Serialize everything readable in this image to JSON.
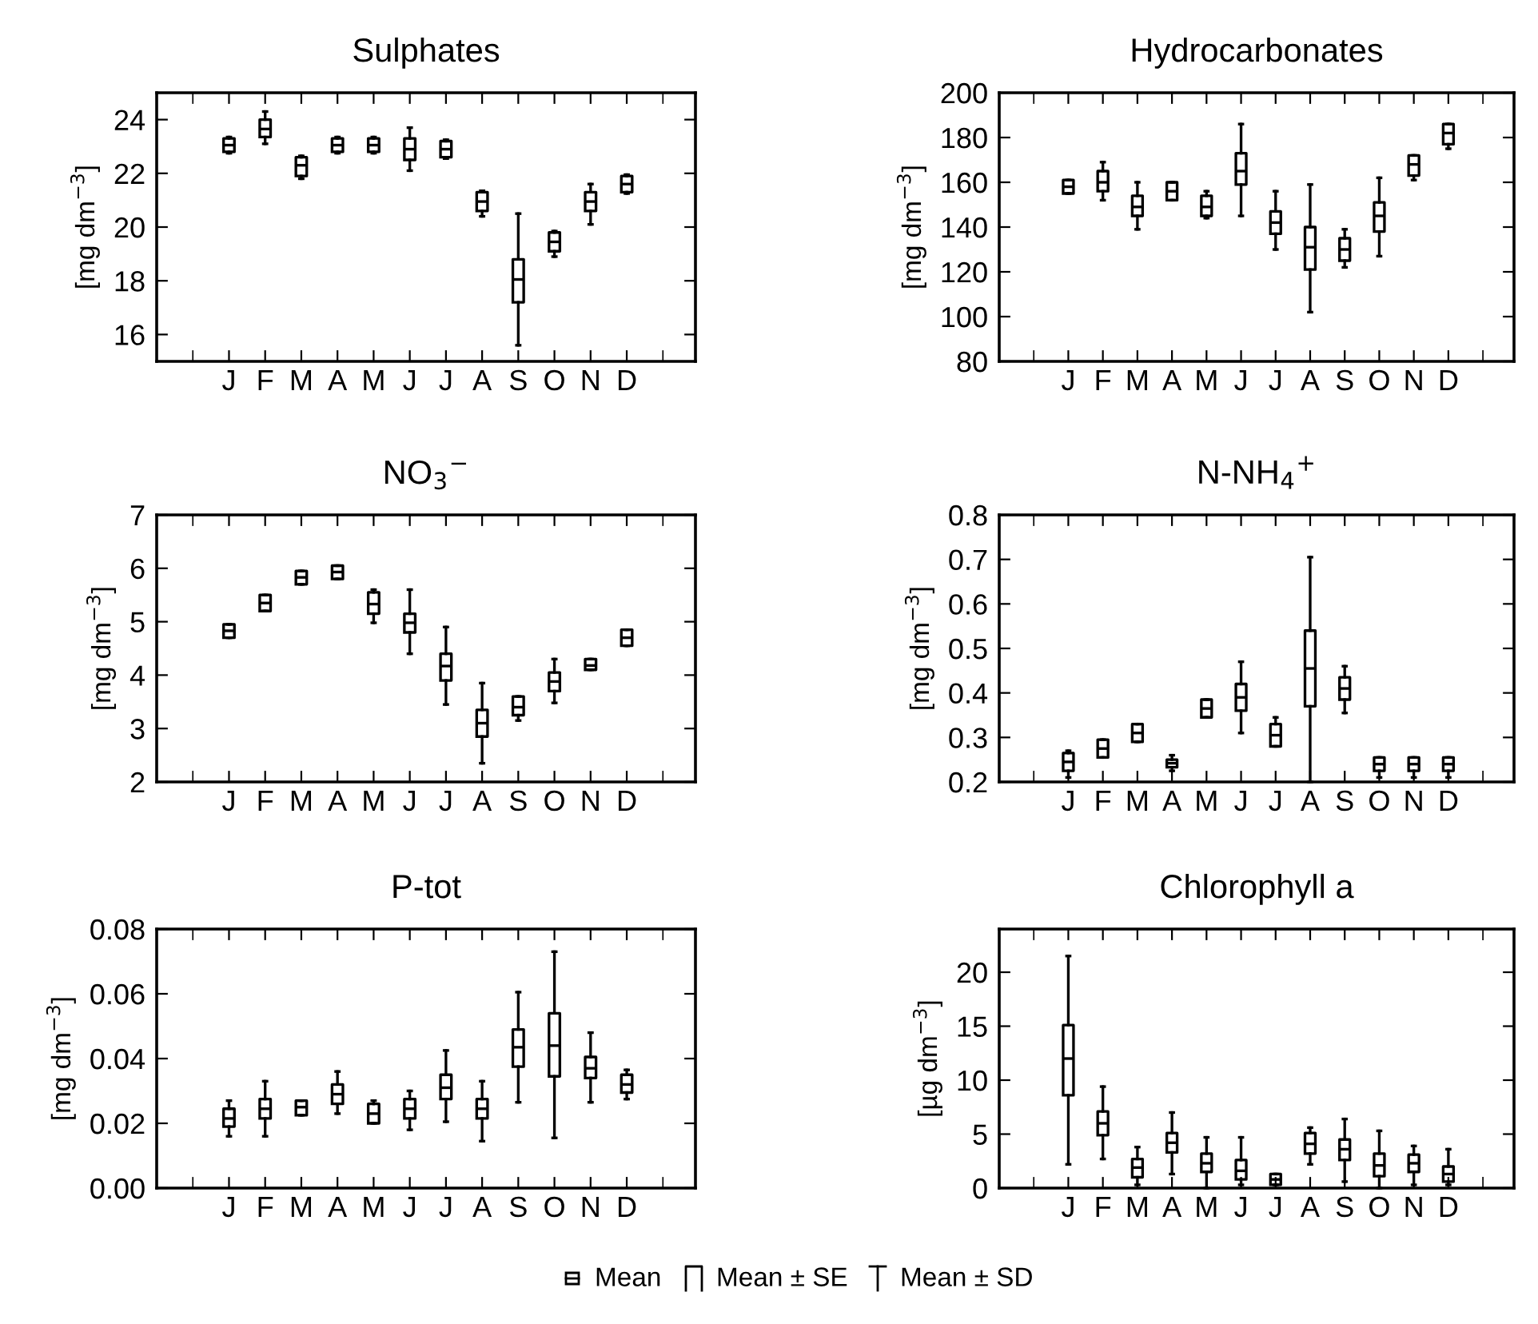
{
  "chart_data": [
    {
      "type": "box",
      "title": "Sulphates",
      "ylabel": "[mg dm$^{−3}$]",
      "categories": [
        "J",
        "F",
        "M",
        "A",
        "M",
        "J",
        "J",
        "A",
        "S",
        "O",
        "N",
        "D"
      ],
      "ylim": [
        15,
        25
      ],
      "yticks": [
        16,
        18,
        20,
        22,
        24
      ],
      "boxes": [
        {
          "low": 22.75,
          "q1": 22.8,
          "median": 23.05,
          "q3": 23.3,
          "high": 23.35
        },
        {
          "low": 23.1,
          "q1": 23.35,
          "median": 23.65,
          "q3": 24.0,
          "high": 24.3
        },
        {
          "low": 21.8,
          "q1": 21.9,
          "median": 22.3,
          "q3": 22.6,
          "high": 22.65
        },
        {
          "low": 22.75,
          "q1": 22.8,
          "median": 23.05,
          "q3": 23.3,
          "high": 23.35
        },
        {
          "low": 22.75,
          "q1": 22.8,
          "median": 23.05,
          "q3": 23.3,
          "high": 23.35
        },
        {
          "low": 22.1,
          "q1": 22.5,
          "median": 22.9,
          "q3": 23.3,
          "high": 23.7
        },
        {
          "low": 22.55,
          "q1": 22.6,
          "median": 22.9,
          "q3": 23.2,
          "high": 23.25
        },
        {
          "low": 20.4,
          "q1": 20.6,
          "median": 20.95,
          "q3": 21.3,
          "high": 21.35
        },
        {
          "low": 15.6,
          "q1": 17.2,
          "median": 18.05,
          "q3": 18.8,
          "high": 20.5
        },
        {
          "low": 18.9,
          "q1": 19.1,
          "median": 19.45,
          "q3": 19.8,
          "high": 19.85
        },
        {
          "low": 20.1,
          "q1": 20.6,
          "median": 20.95,
          "q3": 21.3,
          "high": 21.6
        },
        {
          "low": 21.25,
          "q1": 21.3,
          "median": 21.6,
          "q3": 21.9,
          "high": 21.95
        }
      ]
    },
    {
      "type": "box",
      "title": "Hydrocarbonates",
      "ylabel": "[mg dm$^{−3}$]",
      "categories": [
        "J",
        "F",
        "M",
        "A",
        "M",
        "J",
        "J",
        "A",
        "S",
        "O",
        "N",
        "D"
      ],
      "ylim": [
        80,
        200
      ],
      "yticks": [
        80,
        100,
        120,
        140,
        160,
        180,
        200
      ],
      "boxes": [
        {
          "low": 155,
          "q1": 155,
          "median": 158,
          "q3": 161,
          "high": 161
        },
        {
          "low": 152,
          "q1": 156,
          "median": 160,
          "q3": 165,
          "high": 169
        },
        {
          "low": 139,
          "q1": 145,
          "median": 149,
          "q3": 154,
          "high": 160
        },
        {
          "low": 152,
          "q1": 152,
          "median": 156,
          "q3": 160,
          "high": 160
        },
        {
          "low": 144,
          "q1": 145,
          "median": 149,
          "q3": 154,
          "high": 156
        },
        {
          "low": 145,
          "q1": 159,
          "median": 165,
          "q3": 173,
          "high": 186
        },
        {
          "low": 130,
          "q1": 137,
          "median": 142,
          "q3": 147,
          "high": 156
        },
        {
          "low": 102,
          "q1": 121,
          "median": 131,
          "q3": 140,
          "high": 159
        },
        {
          "low": 122,
          "q1": 125,
          "median": 130,
          "q3": 135,
          "high": 139
        },
        {
          "low": 127,
          "q1": 138,
          "median": 145,
          "q3": 151,
          "high": 162
        },
        {
          "low": 161,
          "q1": 163,
          "median": 168,
          "q3": 172,
          "high": 172
        },
        {
          "low": 175,
          "q1": 177,
          "median": 182,
          "q3": 186,
          "high": 186
        }
      ]
    },
    {
      "type": "box",
      "title": "NO$_{3}$$^{−}$",
      "ylabel": "[mg dm$^{−3}$]",
      "categories": [
        "J",
        "F",
        "M",
        "A",
        "M",
        "J",
        "J",
        "A",
        "S",
        "O",
        "N",
        "D"
      ],
      "ylim": [
        2,
        7
      ],
      "yticks": [
        2,
        3,
        4,
        5,
        6,
        7
      ],
      "boxes": [
        {
          "low": 4.7,
          "q1": 4.7,
          "median": 4.83,
          "q3": 4.95,
          "high": 4.95
        },
        {
          "low": 5.2,
          "q1": 5.2,
          "median": 5.35,
          "q3": 5.5,
          "high": 5.5
        },
        {
          "low": 5.7,
          "q1": 5.7,
          "median": 5.83,
          "q3": 5.95,
          "high": 5.95
        },
        {
          "low": 5.8,
          "q1": 5.8,
          "median": 5.93,
          "q3": 6.05,
          "high": 6.05
        },
        {
          "low": 4.98,
          "q1": 5.15,
          "median": 5.33,
          "q3": 5.55,
          "high": 5.6
        },
        {
          "low": 4.4,
          "q1": 4.8,
          "median": 4.98,
          "q3": 5.15,
          "high": 5.6
        },
        {
          "low": 3.45,
          "q1": 3.9,
          "median": 4.17,
          "q3": 4.4,
          "high": 4.9
        },
        {
          "low": 2.35,
          "q1": 2.85,
          "median": 3.1,
          "q3": 3.35,
          "high": 3.85
        },
        {
          "low": 3.15,
          "q1": 3.25,
          "median": 3.4,
          "q3": 3.6,
          "high": 3.6
        },
        {
          "low": 3.48,
          "q1": 3.7,
          "median": 3.88,
          "q3": 4.05,
          "high": 4.3
        },
        {
          "low": 4.1,
          "q1": 4.1,
          "median": 4.18,
          "q3": 4.3,
          "high": 4.3
        },
        {
          "low": 4.55,
          "q1": 4.55,
          "median": 4.7,
          "q3": 4.85,
          "high": 4.85
        }
      ]
    },
    {
      "type": "box",
      "title": "N-NH$_{4}$$^{+}$",
      "ylabel": "[mg dm$^{−3}$]",
      "categories": [
        "J",
        "F",
        "M",
        "A",
        "M",
        "J",
        "J",
        "A",
        "S",
        "O",
        "N",
        "D"
      ],
      "ylim": [
        0.2,
        0.8
      ],
      "yticks": [
        0.2,
        0.3,
        0.4,
        0.5,
        0.6,
        0.7,
        0.8
      ],
      "boxes": [
        {
          "low": 0.21,
          "q1": 0.225,
          "median": 0.245,
          "q3": 0.265,
          "high": 0.27
        },
        {
          "low": 0.255,
          "q1": 0.255,
          "median": 0.275,
          "q3": 0.295,
          "high": 0.295
        },
        {
          "low": 0.29,
          "q1": 0.29,
          "median": 0.31,
          "q3": 0.33,
          "high": 0.33
        },
        {
          "low": 0.225,
          "q1": 0.233,
          "median": 0.242,
          "q3": 0.25,
          "high": 0.26
        },
        {
          "low": 0.345,
          "q1": 0.345,
          "median": 0.365,
          "q3": 0.385,
          "high": 0.385
        },
        {
          "low": 0.31,
          "q1": 0.36,
          "median": 0.39,
          "q3": 0.42,
          "high": 0.47
        },
        {
          "low": 0.28,
          "q1": 0.28,
          "median": 0.305,
          "q3": 0.33,
          "high": 0.345
        },
        {
          "low": 0.2,
          "q1": 0.37,
          "median": 0.455,
          "q3": 0.54,
          "high": 0.705
        },
        {
          "low": 0.355,
          "q1": 0.385,
          "median": 0.41,
          "q3": 0.435,
          "high": 0.46
        },
        {
          "low": 0.21,
          "q1": 0.225,
          "median": 0.24,
          "q3": 0.255,
          "high": 0.255
        },
        {
          "low": 0.21,
          "q1": 0.225,
          "median": 0.24,
          "q3": 0.255,
          "high": 0.255
        },
        {
          "low": 0.21,
          "q1": 0.225,
          "median": 0.24,
          "q3": 0.255,
          "high": 0.255
        }
      ]
    },
    {
      "type": "box",
      "title": "P-tot",
      "ylabel": "[mg dm$^{−3}$]",
      "categories": [
        "J",
        "F",
        "M",
        "A",
        "M",
        "J",
        "J",
        "A",
        "S",
        "O",
        "N",
        "D"
      ],
      "ylim": [
        0,
        0.08
      ],
      "yticks": [
        {
          "value": 0,
          "label": "0.00"
        },
        {
          "value": 0.02,
          "label": "0.02"
        },
        {
          "value": 0.04,
          "label": "0.04"
        },
        {
          "value": 0.06,
          "label": "0.06"
        },
        {
          "value": 0.08,
          "label": "0.08"
        }
      ],
      "boxes": [
        {
          "low": 0.016,
          "q1": 0.019,
          "median": 0.0215,
          "q3": 0.0245,
          "high": 0.027
        },
        {
          "low": 0.016,
          "q1": 0.0215,
          "median": 0.0245,
          "q3": 0.0275,
          "high": 0.033
        },
        {
          "low": 0.0225,
          "q1": 0.0225,
          "median": 0.025,
          "q3": 0.027,
          "high": 0.027
        },
        {
          "low": 0.023,
          "q1": 0.026,
          "median": 0.029,
          "q3": 0.032,
          "high": 0.036
        },
        {
          "low": 0.02,
          "q1": 0.02,
          "median": 0.023,
          "q3": 0.026,
          "high": 0.027
        },
        {
          "low": 0.018,
          "q1": 0.0215,
          "median": 0.0245,
          "q3": 0.0275,
          "high": 0.03
        },
        {
          "low": 0.0205,
          "q1": 0.0275,
          "median": 0.031,
          "q3": 0.035,
          "high": 0.0425
        },
        {
          "low": 0.0145,
          "q1": 0.0215,
          "median": 0.0245,
          "q3": 0.0275,
          "high": 0.033
        },
        {
          "low": 0.0265,
          "q1": 0.0375,
          "median": 0.0435,
          "q3": 0.049,
          "high": 0.0605
        },
        {
          "low": 0.0155,
          "q1": 0.0345,
          "median": 0.044,
          "q3": 0.054,
          "high": 0.073
        },
        {
          "low": 0.0265,
          "q1": 0.034,
          "median": 0.037,
          "q3": 0.0405,
          "high": 0.048
        },
        {
          "low": 0.0275,
          "q1": 0.0295,
          "median": 0.032,
          "q3": 0.035,
          "high": 0.0365
        }
      ]
    },
    {
      "type": "box",
      "title": "Chlorophyll a",
      "ylabel": "[µg dm$^{−3}$]",
      "categories": [
        "J",
        "F",
        "M",
        "A",
        "M",
        "J",
        "J",
        "A",
        "S",
        "O",
        "N",
        "D"
      ],
      "ylim": [
        0,
        24
      ],
      "yticks": [
        0,
        5,
        10,
        15,
        20
      ],
      "annotations": [
        "Mean",
        "Mean ± SE",
        "Mean ± SD"
      ],
      "boxes": [
        {
          "low": 2.2,
          "q1": 8.6,
          "median": 12,
          "q3": 15.1,
          "high": 21.5
        },
        {
          "low": 2.7,
          "q1": 4.9,
          "median": 6,
          "q3": 7.1,
          "high": 9.4
        },
        {
          "low": 0.3,
          "q1": 1.0,
          "median": 1.9,
          "q3": 2.7,
          "high": 3.8
        },
        {
          "low": 1.3,
          "q1": 3.3,
          "median": 4.2,
          "q3": 5.1,
          "high": 7.0
        },
        {
          "low": 0,
          "q1": 1.5,
          "median": 2.3,
          "q3": 3.2,
          "high": 4.7
        },
        {
          "low": 0.3,
          "q1": 0.8,
          "median": 1.6,
          "q3": 2.6,
          "high": 4.7
        },
        {
          "low": 0.3,
          "q1": 0.3,
          "median": 0.8,
          "q3": 1.3,
          "high": 1.3
        },
        {
          "low": 2.2,
          "q1": 3.2,
          "median": 4.1,
          "q3": 5.1,
          "high": 5.6
        },
        {
          "low": 0.6,
          "q1": 2.6,
          "median": 3.6,
          "q3": 4.5,
          "high": 6.4
        },
        {
          "low": 0,
          "q1": 1.1,
          "median": 2.1,
          "q3": 3.2,
          "high": 5.3
        },
        {
          "low": 0.3,
          "q1": 1.5,
          "median": 2.3,
          "q3": 3.1,
          "high": 3.9
        },
        {
          "low": 0.3,
          "q1": 0.6,
          "median": 1.3,
          "q3": 2.0,
          "high": 3.6
        }
      ]
    }
  ]
}
